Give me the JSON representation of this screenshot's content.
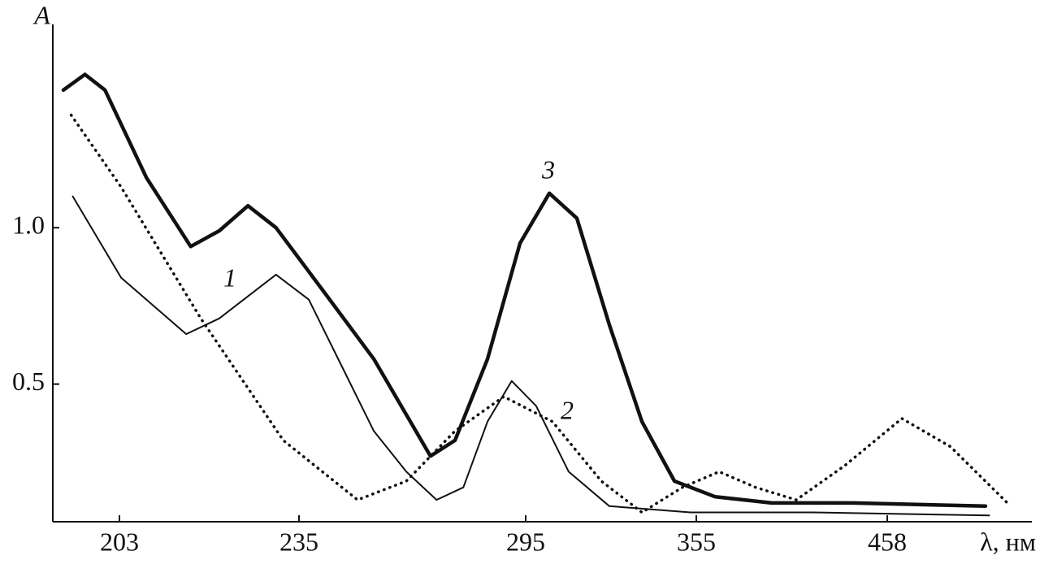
{
  "chart_data": {
    "type": "line",
    "y_label": "A",
    "x_label": "λ, нм",
    "xlim": [
      191,
      536
    ],
    "xticks": [
      203,
      235,
      295,
      355,
      458
    ],
    "ylim": [
      0.06,
      1.65
    ],
    "yticks": [
      0.5,
      {
        "value": 1,
        "label": "1.0"
      }
    ],
    "grid": false,
    "series": [
      {
        "name": "1",
        "color": "#111111",
        "linestyle": "solid",
        "linewidth": 2,
        "x": [
          194.6,
          203.3,
          214.9,
          220.8,
          230.9,
          237.6,
          246.2,
          254.8,
          263.4,
          271.4,
          278.5,
          284.9,
          291.3,
          298.7,
          310.1,
          324.4,
          353,
          417.6,
          513
        ],
        "values": [
          1.1,
          0.84,
          0.66,
          0.71,
          0.85,
          0.77,
          0.56,
          0.35,
          0.22,
          0.13,
          0.17,
          0.38,
          0.51,
          0.43,
          0.22,
          0.11,
          0.09,
          0.09,
          0.08
        ]
      },
      {
        "name": "2",
        "color": "#111111",
        "linestyle": "dotted",
        "linewidth": 3.5,
        "x": [
          194.3,
          203.3,
          217.5,
          232.2,
          250.5,
          263.4,
          276.3,
          289.2,
          304.4,
          321.6,
          335.9,
          350.1,
          367.3,
          387,
          408.9,
          435.2,
          465.9,
          492.1,
          522.8
        ],
        "values": [
          1.36,
          1.13,
          0.71,
          0.32,
          0.13,
          0.19,
          0.35,
          0.46,
          0.38,
          0.19,
          0.09,
          0.17,
          0.22,
          0.17,
          0.13,
          0.24,
          0.39,
          0.3,
          0.12
        ]
      },
      {
        "name": "3",
        "color": "#111111",
        "linestyle": "solid",
        "linewidth": 4.5,
        "x": [
          192.9,
          196.8,
          200.4,
          207.8,
          215.7,
          220.8,
          225.9,
          230.9,
          241.9,
          254.8,
          269.8,
          276.3,
          284.9,
          293.5,
          303.3,
          313,
          324.4,
          335.9,
          347.3,
          365.1,
          395.7,
          439.5,
          511
        ],
        "values": [
          1.44,
          1.49,
          1.44,
          1.16,
          0.94,
          0.99,
          1.07,
          1.0,
          0.79,
          0.58,
          0.27,
          0.32,
          0.58,
          0.95,
          1.11,
          1.03,
          0.69,
          0.38,
          0.19,
          0.14,
          0.12,
          0.12,
          0.11
        ]
      }
    ]
  }
}
